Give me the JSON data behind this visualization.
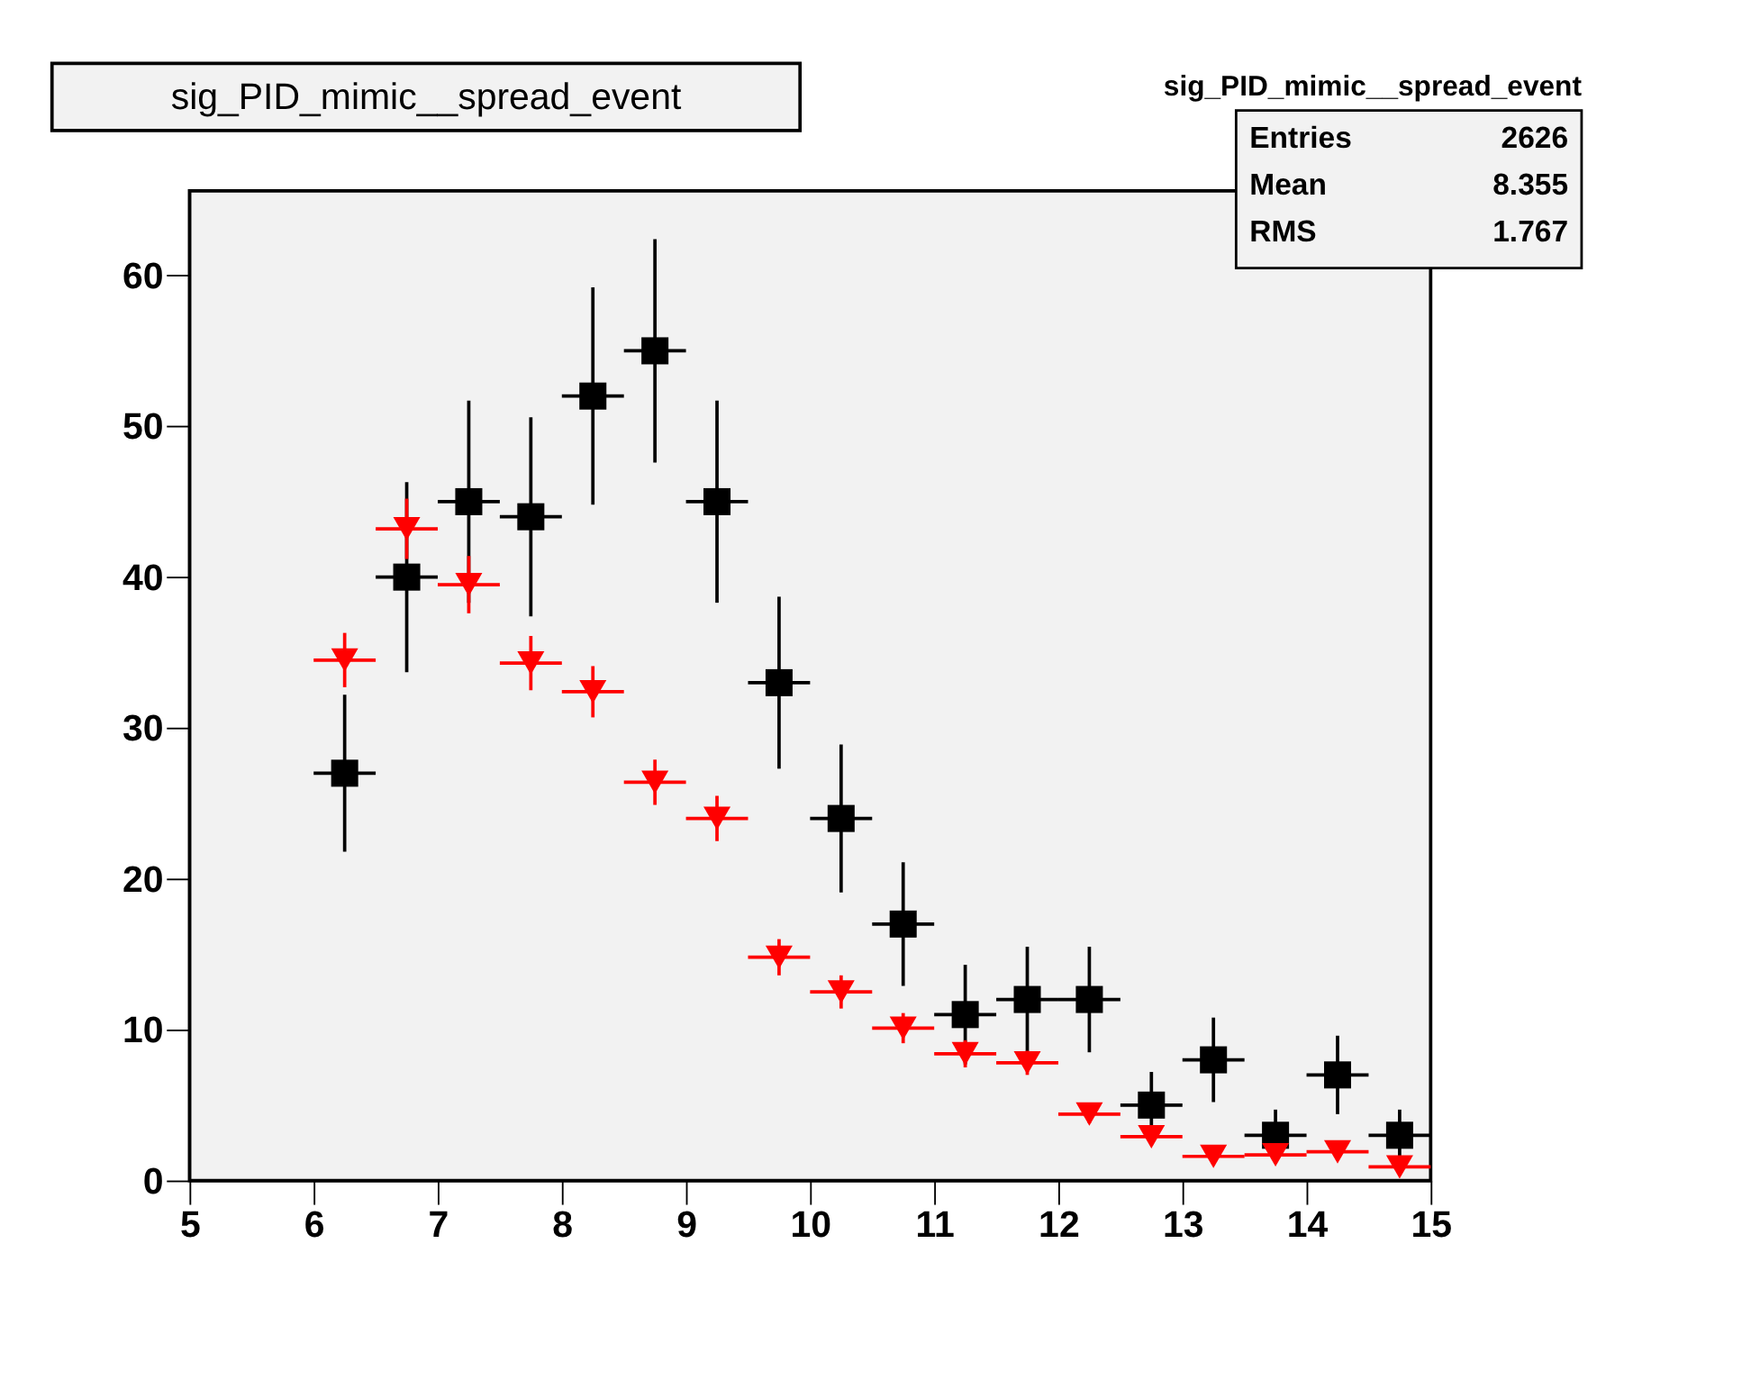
{
  "chart_data": {
    "type": "scatter",
    "title": "sig_PID_mimic__spread_event",
    "annotations": [
      "sig_PID_mimic__spread_event",
      "Entries 2626",
      "Mean 8.355",
      "RMS 1.767"
    ],
    "x": [
      6.25,
      6.75,
      7.25,
      7.75,
      8.25,
      8.75,
      9.25,
      9.75,
      10.25,
      10.75,
      11.25,
      11.75,
      12.25,
      12.75,
      13.25,
      13.75,
      14.25,
      14.75
    ],
    "series": [
      {
        "color": "#000000",
        "marker": "square",
        "values": [
          27,
          40,
          45,
          44,
          52,
          55,
          45,
          33,
          24,
          17,
          11,
          12,
          12,
          5,
          8,
          3,
          7,
          3
        ],
        "errors": [
          5.2,
          6.3,
          6.7,
          6.6,
          7.2,
          7.4,
          6.7,
          5.7,
          4.9,
          4.1,
          3.3,
          3.5,
          3.5,
          2.2,
          2.8,
          1.7,
          2.6,
          1.7
        ],
        "xerrors": [
          0.25,
          0.25,
          0.25,
          0.25,
          0.25,
          0.25,
          0.25,
          0.25,
          0.25,
          0.25,
          0.25,
          0.25,
          0.25,
          0.25,
          0.25,
          0.25,
          0.25,
          0.25
        ]
      },
      {
        "color": "#ff0000",
        "marker": "triangle",
        "values": [
          34.5,
          43.2,
          39.5,
          34.3,
          32.4,
          26.4,
          24.0,
          14.8,
          12.5,
          10.1,
          8.4,
          7.8,
          4.4,
          2.9,
          1.6,
          1.7,
          1.9,
          0.9
        ],
        "errors": [
          1.8,
          2.0,
          1.9,
          1.8,
          1.7,
          1.5,
          1.5,
          1.2,
          1.1,
          1.0,
          0.9,
          0.8,
          0.6,
          0.5,
          0.4,
          0.4,
          0.4,
          0.3
        ],
        "xerrors": [
          0.25,
          0.25,
          0.25,
          0.25,
          0.25,
          0.25,
          0.25,
          0.25,
          0.25,
          0.25,
          0.25,
          0.25,
          0.25,
          0.25,
          0.25,
          0.25,
          0.25,
          0.25
        ]
      }
    ],
    "xlim": [
      5,
      15
    ],
    "xticks": [
      {
        "value": 5,
        "label": "5"
      },
      {
        "value": 6,
        "label": "6"
      },
      {
        "value": 7,
        "label": "7"
      },
      {
        "value": 8,
        "label": "8"
      },
      {
        "value": 9,
        "label": "9"
      },
      {
        "value": 10,
        "label": "10"
      },
      {
        "value": 11,
        "label": "11"
      },
      {
        "value": 12,
        "label": "12"
      },
      {
        "value": 13,
        "label": "13"
      },
      {
        "value": 14,
        "label": "14"
      },
      {
        "value": 15,
        "label": "15"
      }
    ],
    "ylim": [
      0,
      65.6
    ],
    "yticks": [
      0,
      10,
      20,
      30,
      40,
      50,
      60
    ],
    "grid": false
  }
}
